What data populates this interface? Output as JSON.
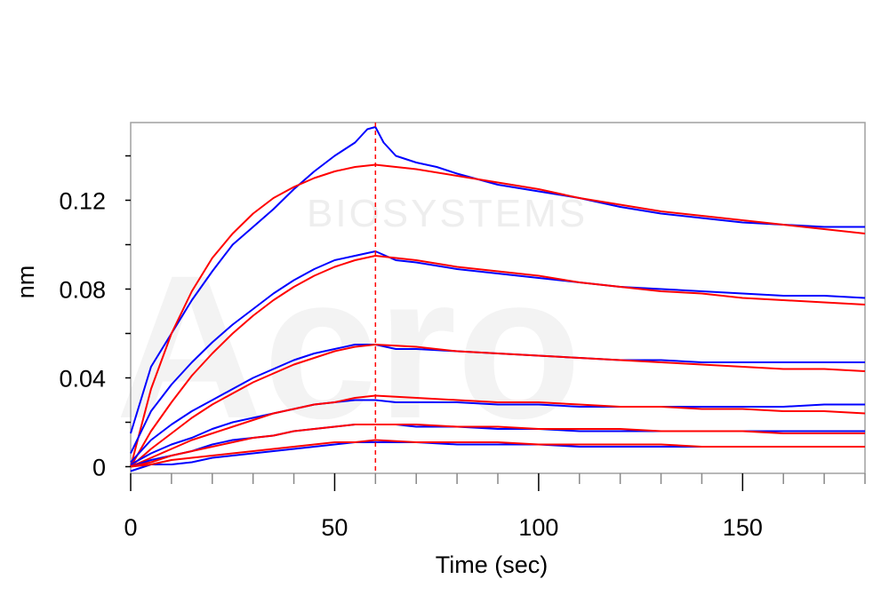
{
  "chart_data": {
    "type": "line",
    "xlabel": "Time (sec)",
    "ylabel": "nm",
    "xlim": [
      0,
      180
    ],
    "ylim": [
      -0.003,
      0.155
    ],
    "x_ticks": [
      0,
      50,
      100,
      150
    ],
    "x_ticks_minor_step": 10,
    "y_ticks": [
      0,
      0.04,
      0.08,
      0.12
    ],
    "y_tick_labels": [
      "0",
      "0.04",
      "0.08",
      "0.12"
    ],
    "y_ticks_minor": [
      0.02,
      0.06,
      0.1,
      0.14
    ],
    "grid": false,
    "legend": "none",
    "dissociation_start_x": 60,
    "colors": {
      "measured": "#0000ff",
      "fitted": "#ff0000",
      "marker": "#ff0000",
      "frame": "#a0a0a0"
    },
    "watermark": {
      "brand": "Acro",
      "text": "BIOSYSTEMS"
    },
    "series": [
      {
        "kind": "measured",
        "x": [
          0,
          5,
          10,
          15,
          20,
          25,
          30,
          35,
          40,
          45,
          50,
          55,
          58,
          60,
          62,
          65,
          70,
          75,
          80,
          90,
          100,
          110,
          120,
          130,
          140,
          150,
          160,
          170,
          180
        ],
        "y": [
          0.015,
          0.045,
          0.06,
          0.075,
          0.088,
          0.1,
          0.108,
          0.116,
          0.125,
          0.133,
          0.14,
          0.146,
          0.152,
          0.153,
          0.146,
          0.14,
          0.137,
          0.135,
          0.132,
          0.127,
          0.124,
          0.121,
          0.117,
          0.114,
          0.112,
          0.11,
          0.109,
          0.108,
          0.108
        ]
      },
      {
        "kind": "fitted",
        "x": [
          0,
          5,
          10,
          15,
          20,
          25,
          30,
          35,
          40,
          45,
          50,
          55,
          60,
          70,
          80,
          90,
          100,
          110,
          120,
          130,
          140,
          150,
          160,
          170,
          180
        ],
        "y": [
          0.0,
          0.035,
          0.06,
          0.079,
          0.094,
          0.105,
          0.114,
          0.121,
          0.126,
          0.13,
          0.133,
          0.135,
          0.136,
          0.134,
          0.131,
          0.128,
          0.125,
          0.121,
          0.118,
          0.115,
          0.113,
          0.111,
          0.109,
          0.107,
          0.105
        ]
      },
      {
        "kind": "measured",
        "x": [
          0,
          5,
          10,
          15,
          20,
          25,
          30,
          35,
          40,
          45,
          50,
          55,
          60,
          65,
          70,
          80,
          90,
          100,
          110,
          120,
          130,
          140,
          150,
          160,
          170,
          180
        ],
        "y": [
          0.006,
          0.025,
          0.037,
          0.047,
          0.056,
          0.064,
          0.071,
          0.078,
          0.084,
          0.089,
          0.093,
          0.095,
          0.097,
          0.093,
          0.092,
          0.089,
          0.087,
          0.085,
          0.083,
          0.081,
          0.08,
          0.079,
          0.078,
          0.077,
          0.077,
          0.076
        ]
      },
      {
        "kind": "fitted",
        "x": [
          0,
          5,
          10,
          15,
          20,
          25,
          30,
          35,
          40,
          45,
          50,
          55,
          60,
          70,
          80,
          90,
          100,
          110,
          120,
          130,
          140,
          150,
          160,
          170,
          180
        ],
        "y": [
          0.0,
          0.016,
          0.029,
          0.041,
          0.051,
          0.06,
          0.068,
          0.075,
          0.081,
          0.086,
          0.09,
          0.093,
          0.095,
          0.093,
          0.09,
          0.088,
          0.086,
          0.083,
          0.081,
          0.079,
          0.078,
          0.076,
          0.075,
          0.074,
          0.073
        ]
      },
      {
        "kind": "measured",
        "x": [
          0,
          5,
          10,
          15,
          20,
          25,
          30,
          35,
          40,
          45,
          50,
          55,
          60,
          65,
          70,
          80,
          90,
          100,
          110,
          120,
          130,
          140,
          150,
          160,
          170,
          180
        ],
        "y": [
          0.002,
          0.012,
          0.019,
          0.025,
          0.03,
          0.035,
          0.04,
          0.044,
          0.048,
          0.051,
          0.053,
          0.055,
          0.055,
          0.053,
          0.053,
          0.052,
          0.051,
          0.05,
          0.049,
          0.048,
          0.048,
          0.047,
          0.047,
          0.047,
          0.047,
          0.047
        ]
      },
      {
        "kind": "fitted",
        "x": [
          0,
          5,
          10,
          15,
          20,
          25,
          30,
          35,
          40,
          45,
          50,
          55,
          60,
          70,
          80,
          90,
          100,
          110,
          120,
          130,
          140,
          150,
          160,
          170,
          180
        ],
        "y": [
          0.0,
          0.008,
          0.015,
          0.022,
          0.028,
          0.033,
          0.038,
          0.042,
          0.046,
          0.049,
          0.052,
          0.054,
          0.055,
          0.054,
          0.052,
          0.051,
          0.05,
          0.049,
          0.048,
          0.047,
          0.046,
          0.045,
          0.044,
          0.044,
          0.043
        ]
      },
      {
        "kind": "measured",
        "x": [
          0,
          5,
          10,
          15,
          20,
          25,
          30,
          35,
          40,
          45,
          50,
          55,
          60,
          65,
          70,
          80,
          90,
          100,
          110,
          120,
          130,
          140,
          150,
          160,
          170,
          180
        ],
        "y": [
          0.001,
          0.006,
          0.01,
          0.013,
          0.017,
          0.02,
          0.022,
          0.024,
          0.026,
          0.028,
          0.029,
          0.03,
          0.03,
          0.029,
          0.029,
          0.029,
          0.028,
          0.028,
          0.027,
          0.027,
          0.027,
          0.027,
          0.027,
          0.027,
          0.028,
          0.028
        ]
      },
      {
        "kind": "fitted",
        "x": [
          0,
          5,
          10,
          15,
          20,
          25,
          30,
          35,
          40,
          45,
          50,
          55,
          60,
          70,
          80,
          90,
          100,
          110,
          120,
          130,
          140,
          150,
          160,
          170,
          180
        ],
        "y": [
          0.0,
          0.004,
          0.008,
          0.012,
          0.015,
          0.018,
          0.021,
          0.024,
          0.026,
          0.028,
          0.029,
          0.031,
          0.032,
          0.031,
          0.03,
          0.029,
          0.029,
          0.028,
          0.027,
          0.027,
          0.026,
          0.026,
          0.025,
          0.025,
          0.024
        ]
      },
      {
        "kind": "measured",
        "x": [
          0,
          5,
          10,
          15,
          20,
          25,
          30,
          35,
          40,
          45,
          50,
          55,
          60,
          65,
          70,
          80,
          90,
          100,
          110,
          120,
          130,
          140,
          150,
          160,
          170,
          180
        ],
        "y": [
          0.0,
          0.003,
          0.005,
          0.007,
          0.01,
          0.012,
          0.013,
          0.014,
          0.016,
          0.017,
          0.018,
          0.019,
          0.019,
          0.019,
          0.018,
          0.018,
          0.017,
          0.017,
          0.016,
          0.016,
          0.016,
          0.016,
          0.016,
          0.016,
          0.016,
          0.016
        ]
      },
      {
        "kind": "fitted",
        "x": [
          0,
          5,
          10,
          15,
          20,
          25,
          30,
          35,
          40,
          45,
          50,
          55,
          60,
          70,
          80,
          90,
          100,
          110,
          120,
          130,
          140,
          150,
          160,
          170,
          180
        ],
        "y": [
          0.0,
          0.002,
          0.005,
          0.007,
          0.009,
          0.011,
          0.013,
          0.014,
          0.016,
          0.017,
          0.018,
          0.019,
          0.019,
          0.019,
          0.018,
          0.018,
          0.017,
          0.017,
          0.017,
          0.016,
          0.016,
          0.016,
          0.015,
          0.015,
          0.015
        ]
      },
      {
        "kind": "measured",
        "x": [
          0,
          5,
          10,
          15,
          20,
          25,
          30,
          35,
          40,
          45,
          50,
          55,
          60,
          65,
          70,
          80,
          90,
          100,
          110,
          120,
          130,
          140,
          150,
          160,
          170,
          180
        ],
        "y": [
          -0.002,
          0.001,
          0.001,
          0.002,
          0.004,
          0.005,
          0.006,
          0.007,
          0.008,
          0.009,
          0.01,
          0.011,
          0.011,
          0.011,
          0.011,
          0.01,
          0.01,
          0.01,
          0.009,
          0.009,
          0.009,
          0.009,
          0.009,
          0.009,
          0.009,
          0.009
        ]
      },
      {
        "kind": "fitted",
        "x": [
          0,
          5,
          10,
          15,
          20,
          25,
          30,
          35,
          40,
          45,
          50,
          55,
          60,
          70,
          80,
          90,
          100,
          110,
          120,
          130,
          140,
          150,
          160,
          170,
          180
        ],
        "y": [
          0.0,
          0.001,
          0.003,
          0.004,
          0.005,
          0.006,
          0.007,
          0.008,
          0.009,
          0.01,
          0.011,
          0.011,
          0.012,
          0.011,
          0.011,
          0.011,
          0.01,
          0.01,
          0.01,
          0.01,
          0.009,
          0.009,
          0.009,
          0.009,
          0.009
        ]
      }
    ]
  }
}
